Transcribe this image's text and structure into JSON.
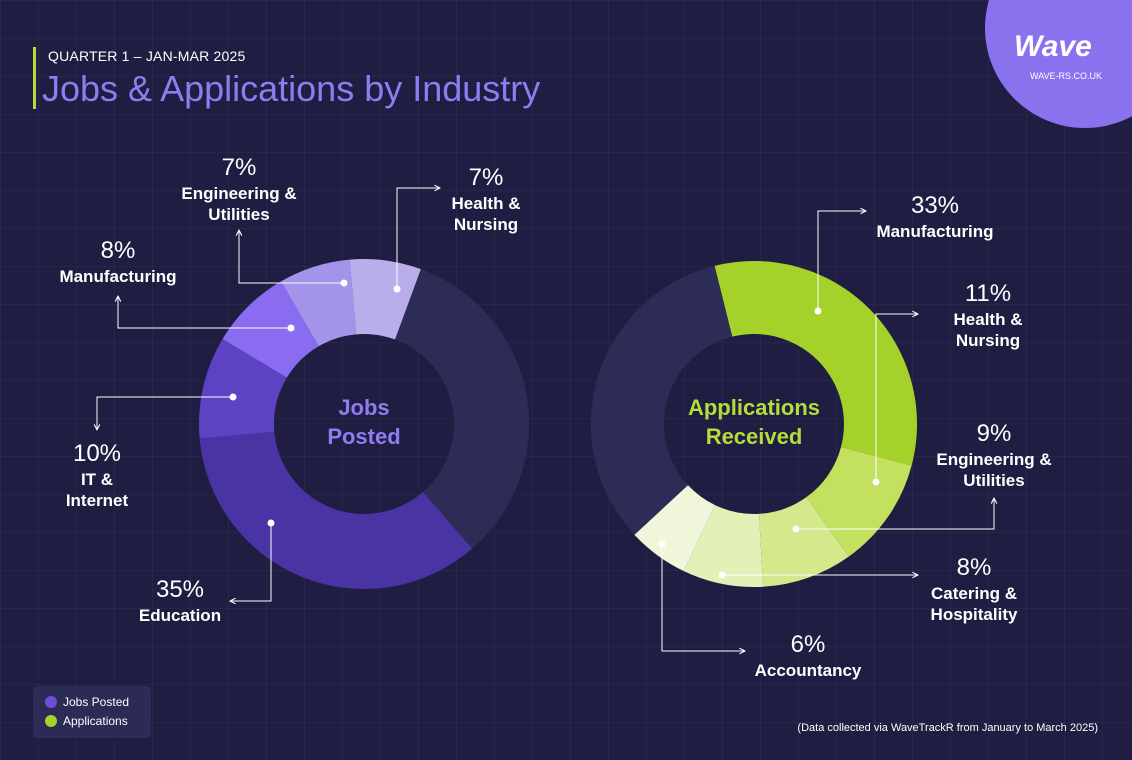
{
  "header": {
    "subtitle": "QUARTER 1 – JAN-MAR 2025",
    "title": "Jobs & Applications by Industry",
    "logo": "Wave",
    "url": "WAVE-RS.CO.UK"
  },
  "chart_data": [
    {
      "type": "donut",
      "title": "Jobs Posted",
      "title_color": "#8f7cf0",
      "categories": [
        "Education",
        "IT & Internet",
        "Manufacturing",
        "Engineering & Utilities",
        "Health & Nursing",
        null
      ],
      "values": [
        35,
        10,
        8,
        7,
        7,
        33
      ],
      "value_labels": [
        "35%",
        "10%",
        "8%",
        "7%",
        "7%",
        null
      ],
      "colors": [
        "#4a33a3",
        "#5d42c4",
        "#8a6cf0",
        "#a393ea",
        "#b9aee9",
        "#2d2c56"
      ]
    },
    {
      "type": "donut",
      "title": "Applications Received",
      "title_color": "#b5dc3a",
      "categories": [
        "Manufacturing",
        "Health & Nursing",
        "Engineering & Utilities",
        "Catering & Hospitality",
        "Accountancy",
        null
      ],
      "values": [
        33,
        11,
        9,
        8,
        6,
        33
      ],
      "value_labels": [
        "33%",
        "11%",
        "9%",
        "8%",
        "6%",
        null
      ],
      "colors": [
        "#a5d22a",
        "#c3e05e",
        "#d3e98c",
        "#e3f0b7",
        "#f0f6da",
        "#2d2c56"
      ]
    }
  ],
  "legend": [
    {
      "name": "Jobs Posted",
      "color": "#6b4fd8"
    },
    {
      "name": "Applications",
      "color": "#a5d22a"
    }
  ],
  "note": "(Data collected via WaveTrackR from January to March 2025)"
}
